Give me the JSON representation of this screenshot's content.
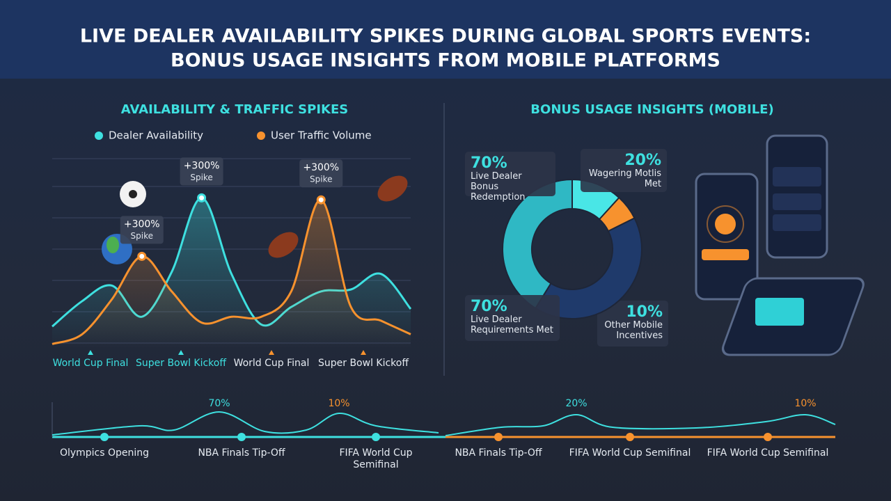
{
  "header": {
    "title_line1": "LIVE DEALER AVAILABILITY SPIKES DURING GLOBAL SPORTS EVENTS:",
    "title_line2": "BONUS USAGE INSIGHTS FROM MOBILE PLATFORMS"
  },
  "traffic_chart": {
    "title": "AVAILABILITY & TRAFFIC SPIKES",
    "series": [
      {
        "name": "Dealer Availability",
        "color": "#3ee0e0",
        "values": [
          11,
          24,
          32,
          16,
          39,
          77,
          38,
          12,
          21,
          29,
          30,
          38,
          20
        ]
      },
      {
        "name": "User Traffic Volume",
        "color": "#f7922e",
        "values": [
          2,
          7,
          25,
          47,
          29,
          13,
          16,
          16,
          29,
          76,
          21,
          14,
          7
        ]
      }
    ],
    "annotations": [
      {
        "label": "+300%",
        "sublabel": "Spike"
      },
      {
        "label": "+300%",
        "sublabel": "Spike"
      },
      {
        "label": "+300%",
        "sublabel": "Spike"
      }
    ],
    "events": [
      "World Cup Final",
      "Super Bowl Kickoff",
      "World Cup Final",
      "Super Bowl Kickoff"
    ]
  },
  "bonus_chart": {
    "title": "BONUS USAGE INSIGHTS (MOBILE)",
    "segments": [
      {
        "value": 70,
        "value_label": "70%",
        "label": "Live Dealer Bonus Redemption",
        "color": "#2fb8c4"
      },
      {
        "value": 20,
        "value_label": "20%",
        "label": "Wagering Motlis Met",
        "color": "#49e6e6"
      },
      {
        "value": 10,
        "value_label": "10%",
        "label": "Other Mobile Incentives",
        "color": "#f7922e"
      },
      {
        "value": 70,
        "value_label": "70%",
        "label": "Live Dealer Requirements Met",
        "color": "#1f3a6b"
      }
    ]
  },
  "timeline": {
    "peak_labels": [
      "70%",
      "10%",
      "20%",
      "10%"
    ],
    "events": [
      "Olympics Opening",
      "NBA Finals Tip-Off",
      "FIFA World Cup Semifinal",
      "NBA Finals Tip-Off",
      "FIFA World Cup Semifinal",
      "FIFA World Cup Semifinal"
    ]
  }
}
